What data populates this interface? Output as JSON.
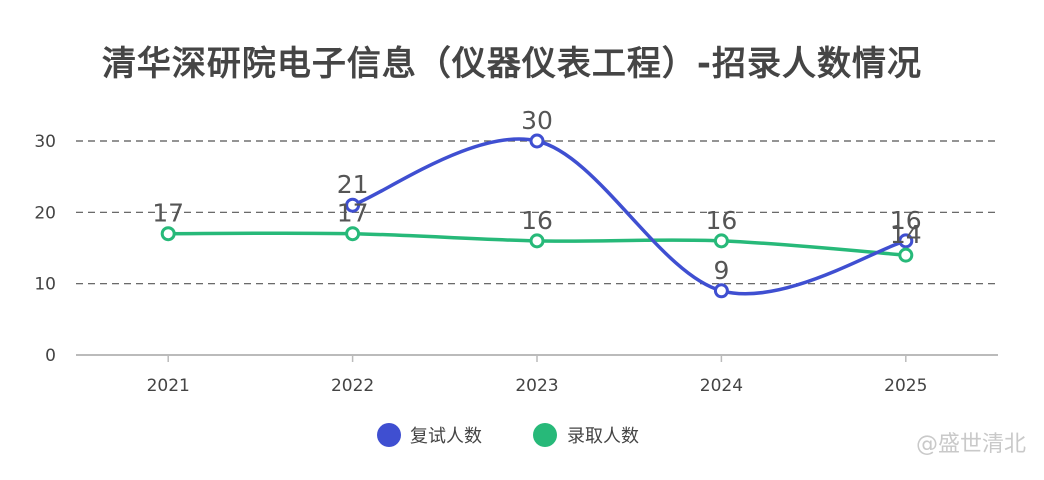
{
  "title": "清华深研院电子信息（仪器仪表工程）-招录人数情况",
  "watermark": "@盛世清北",
  "chart_data": {
    "type": "line",
    "title": "清华深研院电子信息（仪器仪表工程）-招录人数情况",
    "categories": [
      "2021",
      "2022",
      "2023",
      "2024",
      "2025"
    ],
    "y_ticks": [
      0,
      10,
      20,
      30
    ],
    "ylim": [
      0,
      30
    ],
    "grid": "dashed horizontal",
    "legend_position": "bottom-center",
    "series": [
      {
        "name": "复试人数",
        "color": "#3f4fd1",
        "values": [
          null,
          21,
          30,
          9,
          16
        ],
        "labels": [
          "",
          "21",
          "30",
          "9",
          "16"
        ]
      },
      {
        "name": "录取人数",
        "color": "#27b979",
        "values": [
          17,
          17,
          16,
          16,
          14
        ],
        "labels": [
          "17",
          "17",
          "16",
          "16",
          "14"
        ]
      }
    ]
  }
}
